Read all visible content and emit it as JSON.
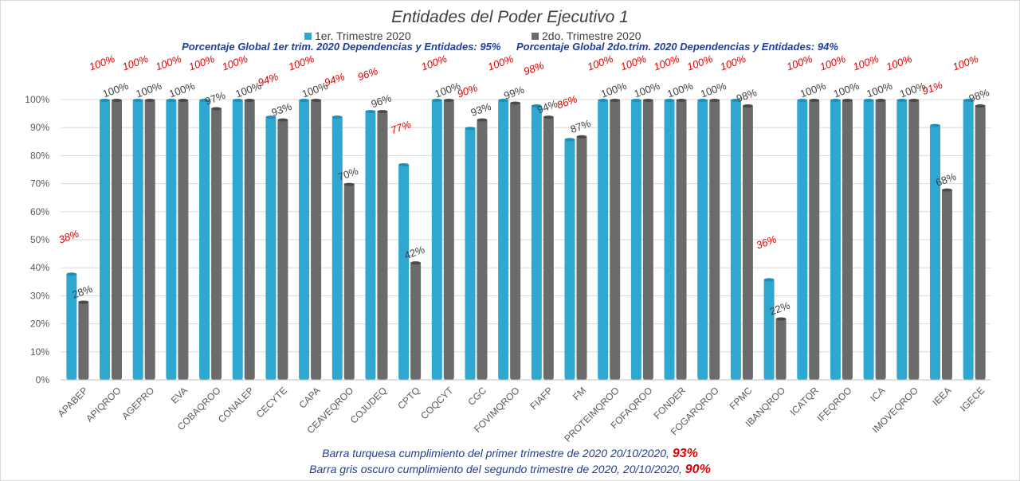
{
  "title": "Entidades del Poder Ejecutivo 1",
  "legend": {
    "q1": "1er. Trimestre 2020",
    "q2": "2do. Trimestre 2020"
  },
  "subtitle": {
    "left": "Porcentaje Global 1er trim. 2020 Dependencias y Entidades: 95%",
    "right": "Porcentaje Global  2do.trim.  2020 Dependencias y Entidades: 94%"
  },
  "footer": {
    "line1_text": "Barra turquesa  cumplimiento  del primer trimestre de 2020   20/10/2020,",
    "line1_value": "93%",
    "line2_text": "Barra gris oscuro  cumplimiento  del segundo  trimestre de 2020,  20/10/2020,",
    "line2_value": "90%"
  },
  "colors": {
    "q1": "#2ea8d0",
    "q2": "#6b6b6b",
    "q1_label": "#e00000",
    "q2_label": "#404040"
  },
  "chart_data": {
    "type": "bar",
    "categories": [
      "APABEP",
      "APIQROO",
      "AGEPRO",
      "EVA",
      "COBAQROO",
      "CONALEP",
      "CECYTE",
      "CAPA",
      "CEAVEQROO",
      "COJUDEQ",
      "CPTQ",
      "COQCYT",
      "CGC",
      "FOVIMQROO",
      "FIAFP",
      "FM",
      "PROTEIMQROO",
      "FOFAQROO",
      "FONDER",
      "FOGARQROO",
      "FPMC",
      "IBANQROO",
      "ICATQR",
      "IFEQROO",
      "ICA",
      "IMOVEQROO",
      "IEEA",
      "IGECE"
    ],
    "series": [
      {
        "name": "1er. Trimestre 2020",
        "values": [
          38,
          100,
          100,
          100,
          100,
          100,
          94,
          100,
          94,
          96,
          77,
          100,
          90,
          100,
          98,
          86,
          100,
          100,
          100,
          100,
          100,
          36,
          100,
          100,
          100,
          100,
          91,
          100
        ]
      },
      {
        "name": "2do. Trimestre 2020",
        "values": [
          28,
          100,
          100,
          100,
          97,
          100,
          93,
          100,
          70,
          96,
          42,
          100,
          93,
          99,
          94,
          87,
          100,
          100,
          100,
          100,
          98,
          22,
          100,
          100,
          100,
          100,
          68,
          98
        ]
      }
    ],
    "y_ticks": [
      "0%",
      "10%",
      "20%",
      "30%",
      "40%",
      "50%",
      "60%",
      "70%",
      "80%",
      "90%",
      "100%"
    ],
    "ylim": [
      0,
      100
    ],
    "grid": true,
    "legend_position": "top"
  }
}
